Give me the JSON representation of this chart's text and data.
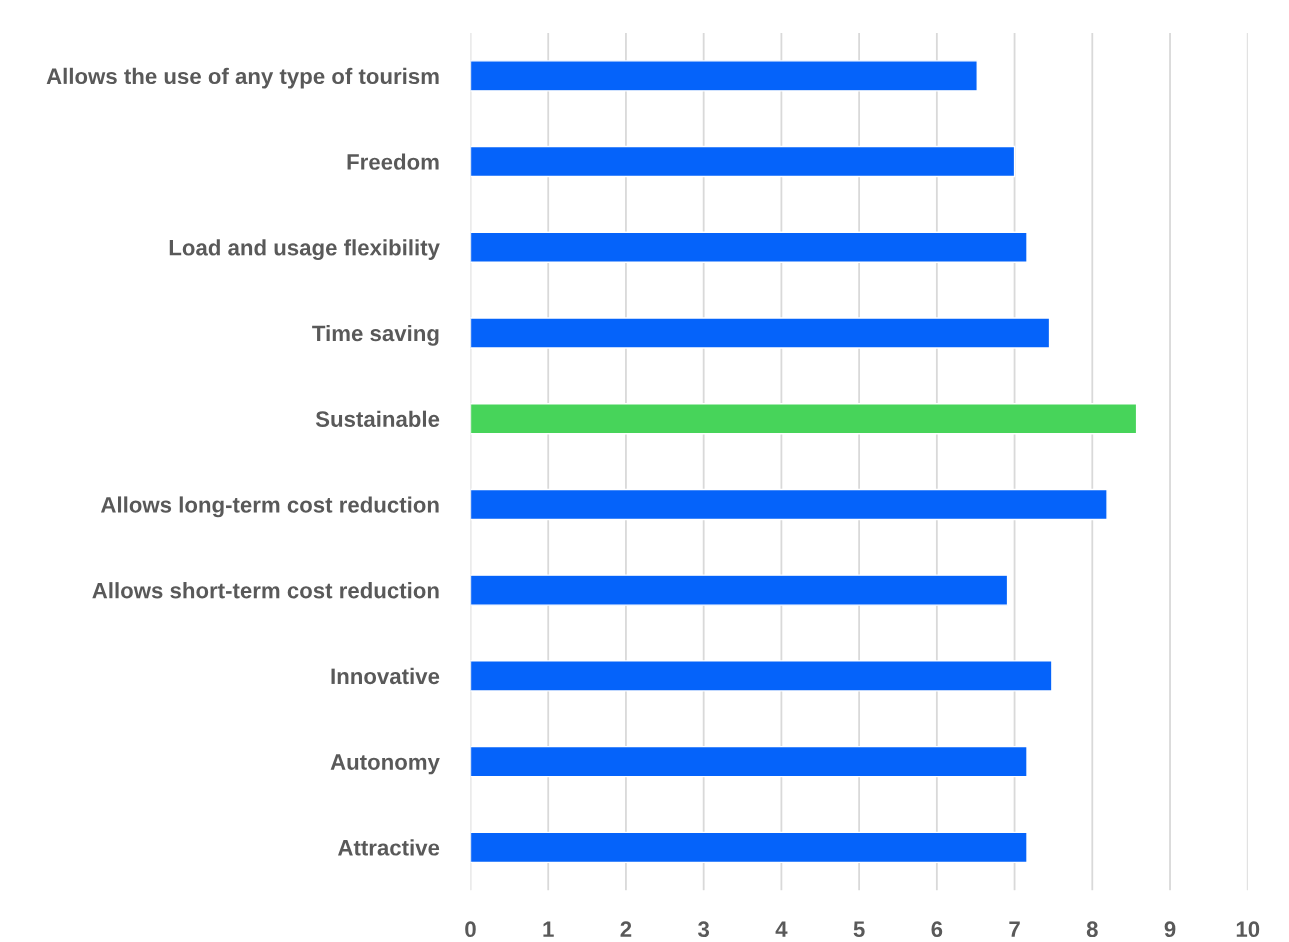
{
  "chart_data": {
    "type": "bar",
    "orientation": "horizontal",
    "categories": [
      "Allows the use of any type of tourism",
      "Freedom",
      "Load and usage flexibility",
      "Time saving",
      "Sustainable",
      "Allows long-term cost reduction",
      "Allows short-term cost reduction",
      "Innovative",
      "Autonomy",
      "Attractive"
    ],
    "values": [
      6.52,
      7.0,
      7.16,
      7.45,
      8.57,
      8.19,
      6.91,
      7.48,
      7.16,
      7.16
    ],
    "colors": [
      "#0563fa",
      "#0563fa",
      "#0563fa",
      "#0563fa",
      "#47d45a",
      "#0563fa",
      "#0563fa",
      "#0563fa",
      "#0563fa",
      "#0563fa"
    ],
    "xlim": [
      0,
      10
    ],
    "xticks": [
      0,
      1,
      2,
      3,
      4,
      5,
      6,
      7,
      8,
      9,
      10
    ],
    "grid": "x",
    "legend": false
  }
}
